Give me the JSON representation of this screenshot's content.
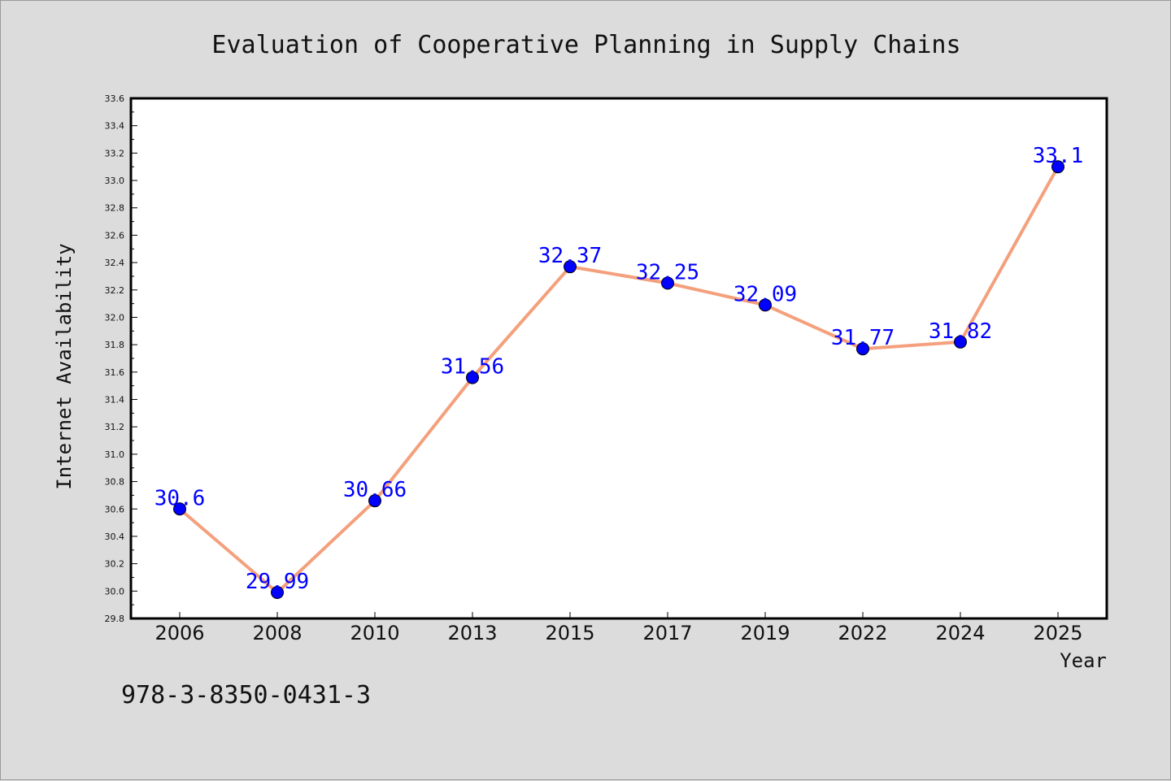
{
  "chart_data": {
    "type": "line",
    "title": "Evaluation of Cooperative Planning in Supply Chains",
    "xlabel": "Year",
    "ylabel": "Internet Availability",
    "categories": [
      "2006",
      "2008",
      "2010",
      "2013",
      "2015",
      "2017",
      "2019",
      "2022",
      "2024",
      "2025"
    ],
    "series": [
      {
        "values": [
          30.6,
          29.99,
          30.66,
          31.56,
          32.37,
          32.25,
          32.09,
          31.77,
          31.82,
          33.1
        ],
        "labels": [
          "30.6",
          "29.99",
          "30.66",
          "31.56",
          "32.37",
          "32.25",
          "32.09",
          "31.77",
          "31.82",
          "33.1"
        ]
      }
    ],
    "ylim": [
      29.8,
      33.6
    ],
    "yticks": [
      "29.8",
      "30.0",
      "30.2",
      "30.4",
      "30.6",
      "30.8",
      "31.0",
      "31.2",
      "31.4",
      "31.6",
      "31.8",
      "32.0",
      "32.2",
      "32.4",
      "32.6",
      "32.8",
      "33.0",
      "33.2",
      "33.4",
      "33.6"
    ],
    "grid": false,
    "line_color": "#f4a07c",
    "marker_color": "#0000ff",
    "label_color": "#0000ff",
    "plot_background": "#ffffff",
    "figure_background": "#dcdcdc"
  },
  "footer": {
    "isbn": "978-3-8350-0431-3"
  }
}
